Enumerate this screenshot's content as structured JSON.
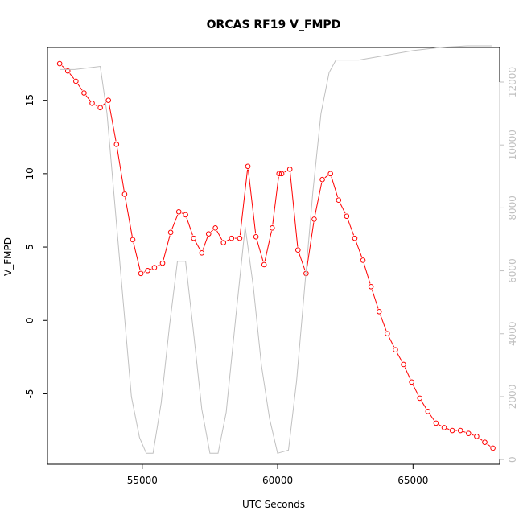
{
  "chart_data": {
    "type": "line",
    "title": "ORCAS RF19 V_FMPD",
    "xlabel": "UTC Seconds",
    "ylabel": "V_FMPD",
    "xlim": [
      51500,
      68200
    ],
    "ylim": [
      -9.8,
      18.6
    ],
    "y2lim": [
      -150,
      13100
    ],
    "x_ticks": [
      55000,
      60000,
      65000
    ],
    "y_ticks": [
      -5,
      0,
      5,
      10,
      15
    ],
    "y2_ticks": [
      0,
      2000,
      4000,
      6000,
      8000,
      10000,
      12000
    ],
    "x_tick_labels": [
      "55000",
      "60000",
      "65000"
    ],
    "y_tick_labels": [
      "-5",
      "0",
      "5",
      "10",
      "15"
    ],
    "y2_tick_labels": [
      "0",
      "2000",
      "4000",
      "6000",
      "8000",
      "10000",
      "12000"
    ],
    "grid": false,
    "colors": {
      "series": "#ff0000",
      "altitude": "#c0c0c0",
      "axes": "#000000"
    },
    "series": [
      {
        "axis": "left",
        "color": "#ff0000",
        "marker": "open-circle",
        "x": [
          51950,
          52250,
          52550,
          52850,
          53150,
          53450,
          53750,
          54050,
          54350,
          54650,
          54950,
          55200,
          55450,
          55750,
          56050,
          56350,
          56600,
          56900,
          57200,
          57450,
          57700,
          58000,
          58300,
          58600,
          58900,
          59200,
          59500,
          59800,
          60050,
          60150,
          60450,
          60750,
          61050,
          61350,
          61650,
          61950,
          62250,
          62550,
          62850,
          63150,
          63450,
          63750,
          64050,
          64350,
          64650,
          64950,
          65250,
          65550,
          65850,
          66150,
          66450,
          66750,
          67050,
          67350,
          67650,
          67950
        ],
        "y": [
          17.5,
          17.0,
          16.3,
          15.5,
          14.8,
          14.5,
          15.0,
          12.0,
          8.6,
          5.5,
          3.2,
          3.4,
          3.6,
          3.9,
          6.0,
          7.4,
          7.2,
          5.6,
          4.6,
          5.9,
          6.3,
          5.3,
          5.6,
          5.6,
          10.5,
          5.7,
          3.8,
          6.3,
          10.0,
          10.0,
          10.3,
          4.8,
          3.2,
          6.9,
          9.6,
          10.0,
          8.2,
          7.1,
          5.6,
          4.1,
          2.3,
          0.6,
          -0.9,
          -2.0,
          -3.0,
          -4.2,
          -5.3,
          -6.2,
          -7.0,
          -7.3,
          -7.5,
          -7.5,
          -7.7,
          -7.9,
          -8.3,
          -8.7
        ]
      },
      {
        "axis": "right",
        "color": "#c0c0c0",
        "marker": "none",
        "x": [
          51950,
          52500,
          53000,
          53450,
          53700,
          54000,
          54300,
          54600,
          54900,
          55150,
          55400,
          55700,
          56000,
          56300,
          56600,
          56900,
          57200,
          57500,
          57800,
          58100,
          58450,
          58800,
          59100,
          59400,
          59700,
          60000,
          60400,
          60700,
          61000,
          61300,
          61600,
          61900,
          62150,
          62500,
          63000,
          64000,
          65000,
          66000,
          67000,
          67900
        ],
        "y": [
          12400,
          12400,
          12450,
          12500,
          11000,
          8000,
          5000,
          2000,
          700,
          200,
          200,
          1800,
          4200,
          6300,
          6300,
          4000,
          1600,
          200,
          200,
          1500,
          4500,
          7400,
          5500,
          3000,
          1300,
          200,
          300,
          2500,
          5500,
          8500,
          11000,
          12300,
          12700,
          12700,
          12700,
          12850,
          13000,
          13100,
          13150,
          13150
        ]
      }
    ]
  }
}
